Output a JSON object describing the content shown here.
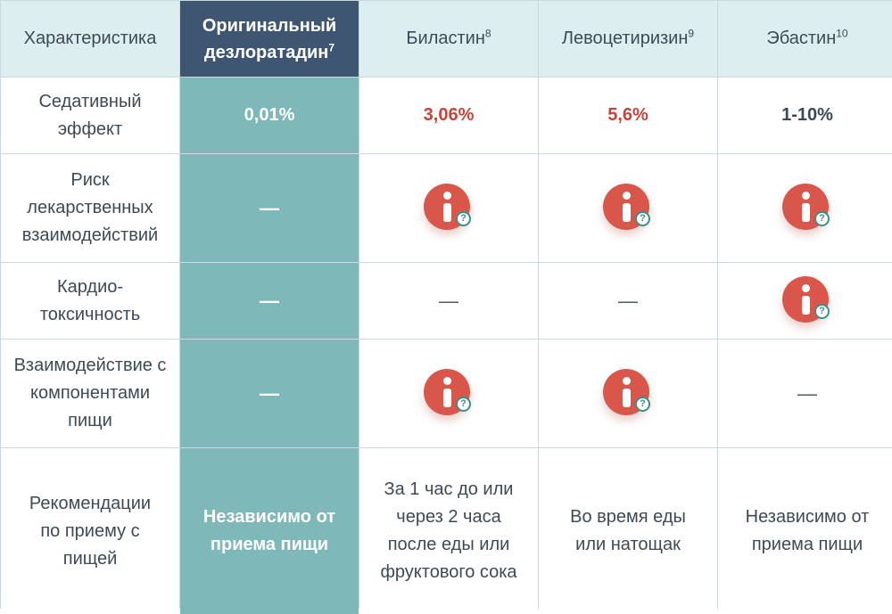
{
  "header": {
    "characteristic": "Характеристика",
    "col1": "Оригинальный дезлоратадин",
    "col1_sup": "7",
    "col2": "Биластин",
    "col2_sup": "8",
    "col3": "Левоцетиризин",
    "col3_sup": "9",
    "col4": "Эбастин",
    "col4_sup": "10"
  },
  "rows": [
    {
      "label": "Седативный эффект",
      "c1": "0,01%",
      "c2": "3,06%",
      "c3": "5,6%",
      "c4": "1-10%"
    },
    {
      "label": "Риск лекарственных взаимодействий",
      "c1": "—",
      "c2": "info-icon",
      "c3": "info-icon",
      "c4": "info-icon"
    },
    {
      "label": "Кардио- токсичность",
      "c1": "—",
      "c2": "—",
      "c3": "—",
      "c4": "info-icon"
    },
    {
      "label": "Взаимодействие с компонентами пищи",
      "c1": "—",
      "c2": "info-icon",
      "c3": "info-icon",
      "c4": "—"
    },
    {
      "label": "Рекомендации по приему с пищей",
      "c1": "Независимо от приема пищи",
      "c2": "За 1 час до или через 2 часа после еды или фруктового сока",
      "c3": "Во время еды или натощак",
      "c4": "Независимо от приема пищи"
    }
  ],
  "info_badge_symbol": "?",
  "colors": {
    "header_bg": "#ddeef0",
    "highlight_header_bg": "#3f5673",
    "highlight_col_bg": "#7fb8b8",
    "red_value": "#c8433a",
    "info_icon": "#d9574a"
  }
}
